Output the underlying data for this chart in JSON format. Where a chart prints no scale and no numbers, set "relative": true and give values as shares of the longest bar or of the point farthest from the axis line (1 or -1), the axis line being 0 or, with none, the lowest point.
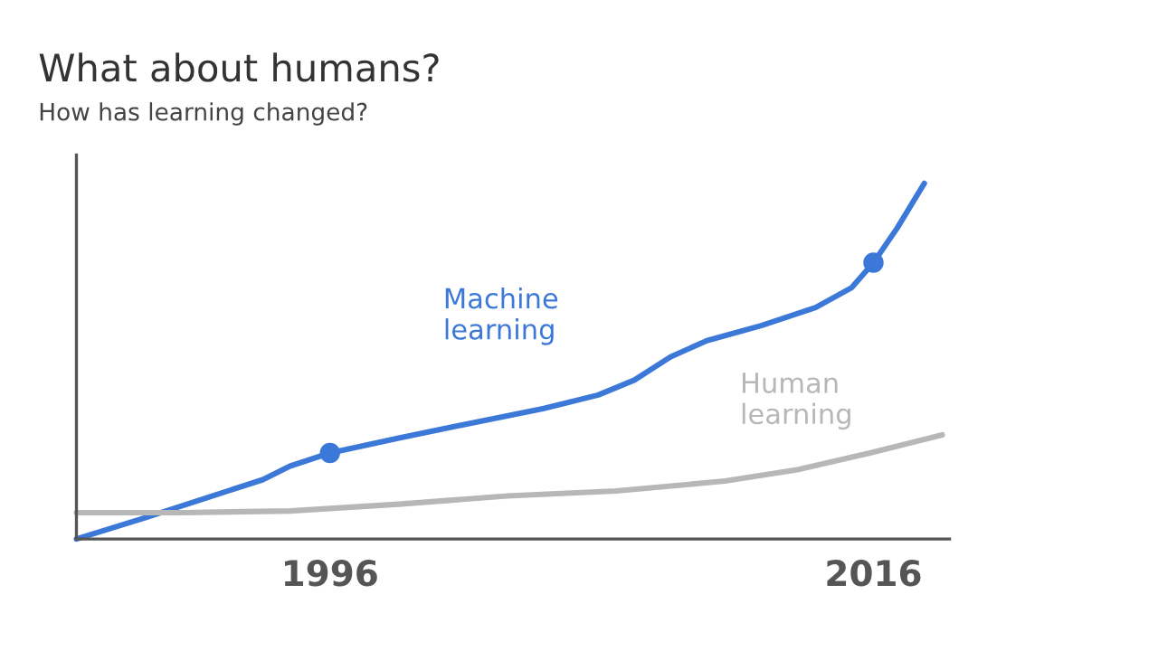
{
  "chart_data": {
    "type": "line",
    "title": "What about humans?",
    "subtitle": "How has learning changed?",
    "relative": true,
    "xlim": [
      1986.67,
      2018.8
    ],
    "xticks": [
      1996,
      2016
    ],
    "grid": false,
    "marker": "none",
    "line_style": "solid",
    "series": [
      {
        "name": "Machine\nlearning",
        "color": "#3b78d8",
        "x": [
          1986.67,
          1989.2,
          1991.87,
          1993.53,
          1994.53,
          1996,
          1998.53,
          2001.2,
          2003.87,
          2005.87,
          2007.2,
          2008.53,
          2009.87,
          2011.87,
          2013.87,
          2015.2,
          2016,
          2016.87,
          2017.87
        ],
        "values": [
          0,
          0.06,
          0.126,
          0.167,
          0.205,
          0.242,
          0.284,
          0.326,
          0.367,
          0.405,
          0.447,
          0.512,
          0.558,
          0.6,
          0.651,
          0.707,
          0.777,
          0.874,
          1
        ]
      },
      {
        "name": "Human\nlearning",
        "color": "#b7b7b7",
        "x": [
          1986.67,
          1990.53,
          1994.53,
          1998.53,
          2002.53,
          2006.53,
          2010.53,
          2013.2,
          2015.87,
          2018.53
        ],
        "values": [
          0.074,
          0.074,
          0.079,
          0.098,
          0.121,
          0.135,
          0.163,
          0.195,
          0.242,
          0.293
        ]
      },
      {
        "type": "scatter",
        "color": "#3b78d8",
        "x": [
          1996,
          2016
        ],
        "values": [
          0.242,
          0.777
        ],
        "marker": "circle"
      }
    ]
  }
}
